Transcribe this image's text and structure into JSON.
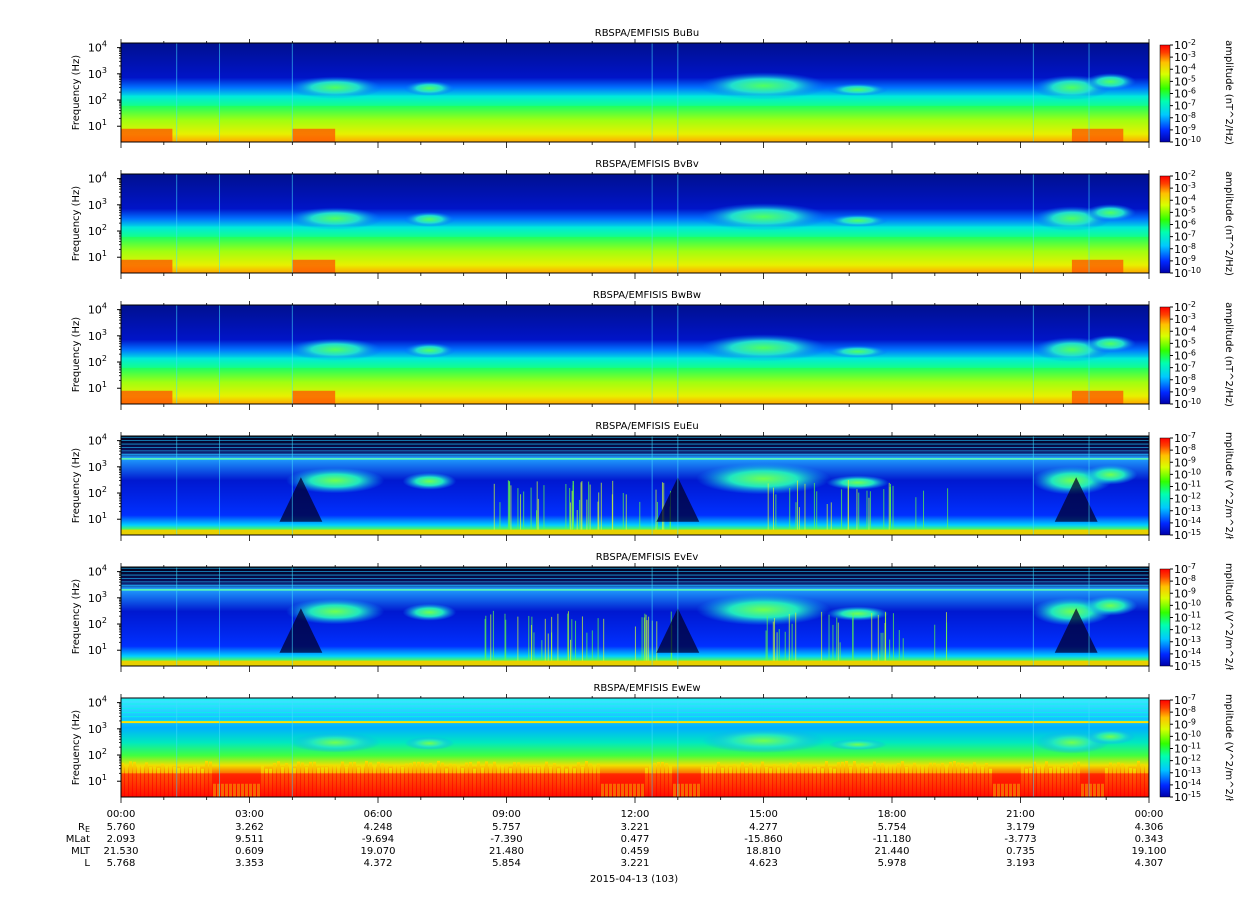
{
  "chart_data": {
    "type": "heatmap",
    "date_label": "2015-04-13 (103)",
    "x_ticks": [
      "00:00",
      "03:00",
      "06:00",
      "09:00",
      "12:00",
      "15:00",
      "18:00",
      "21:00",
      "00:00"
    ],
    "y_ticks": [
      {
        "base": "10",
        "exp": "1"
      },
      {
        "base": "10",
        "exp": "2"
      },
      {
        "base": "10",
        "exp": "3"
      },
      {
        "base": "10",
        "exp": "4"
      }
    ],
    "ylim_hz": [
      2.5,
      15000
    ],
    "y_scale": "log",
    "panels": [
      {
        "title": "RBSPA/EMFISIS  BuBu",
        "ylabel": "Frequency (Hz)",
        "cbar_label": "amplitude (nT^2/Hz)",
        "cbar_ticks": [
          "-2",
          "-3",
          "-4",
          "-5",
          "-6",
          "-7",
          "-8",
          "-9",
          "-10"
        ],
        "type": "B"
      },
      {
        "title": "RBSPA/EMFISIS  BvBv",
        "ylabel": "Frequency (Hz)",
        "cbar_label": "amplitude (nT^2/Hz)",
        "cbar_ticks": [
          "-2",
          "-3",
          "-4",
          "-5",
          "-6",
          "-7",
          "-8",
          "-9",
          "-10"
        ],
        "type": "B"
      },
      {
        "title": "RBSPA/EMFISIS  BwBw",
        "ylabel": "Frequency (Hz)",
        "cbar_label": "amplitude (nT^2/Hz)",
        "cbar_ticks": [
          "-2",
          "-3",
          "-4",
          "-5",
          "-6",
          "-7",
          "-8",
          "-9",
          "-10"
        ],
        "type": "B"
      },
      {
        "title": "RBSPA/EMFISIS  EuEu",
        "ylabel": "Frequency (Hz)",
        "cbar_label": "mplitude (V^2/m^2/ł",
        "cbar_ticks": [
          "-7",
          "-8",
          "-9",
          "-10",
          "-11",
          "-12",
          "-13",
          "-14",
          "-15"
        ],
        "type": "E"
      },
      {
        "title": "RBSPA/EMFISIS  EvEv",
        "ylabel": "Frequency (Hz)",
        "cbar_label": "mplitude (V^2/m^2/ł",
        "cbar_ticks": [
          "-7",
          "-8",
          "-9",
          "-10",
          "-11",
          "-12",
          "-13",
          "-14",
          "-15"
        ],
        "type": "E"
      },
      {
        "title": "RBSPA/EMFISIS  EwEw",
        "ylabel": "Frequency (Hz)",
        "cbar_label": "mplitude (V^2/m^2/ł",
        "cbar_ticks": [
          "-7",
          "-8",
          "-9",
          "-10",
          "-11",
          "-12",
          "-13",
          "-14",
          "-15"
        ],
        "type": "Ew"
      }
    ],
    "ephemeris": [
      {
        "label": "R",
        "sub": "E",
        "values": [
          "5.760",
          "3.262",
          "4.248",
          "5.757",
          "3.221",
          "4.277",
          "5.754",
          "3.179",
          "4.306"
        ]
      },
      {
        "label": "MLat",
        "sub": "",
        "values": [
          "2.093",
          "9.511",
          "-9.694",
          "-7.390",
          "0.477",
          "-15.860",
          "-11.180",
          "-3.773",
          "0.343"
        ]
      },
      {
        "label": "MLT",
        "sub": "",
        "values": [
          "21.530",
          "0.609",
          "19.070",
          "21.480",
          "0.459",
          "18.810",
          "21.440",
          "0.735",
          "19.100"
        ]
      },
      {
        "label": "L",
        "sub": "",
        "values": [
          "5.768",
          "3.353",
          "4.372",
          "5.854",
          "3.221",
          "4.623",
          "5.978",
          "3.193",
          "4.307"
        ]
      }
    ]
  }
}
